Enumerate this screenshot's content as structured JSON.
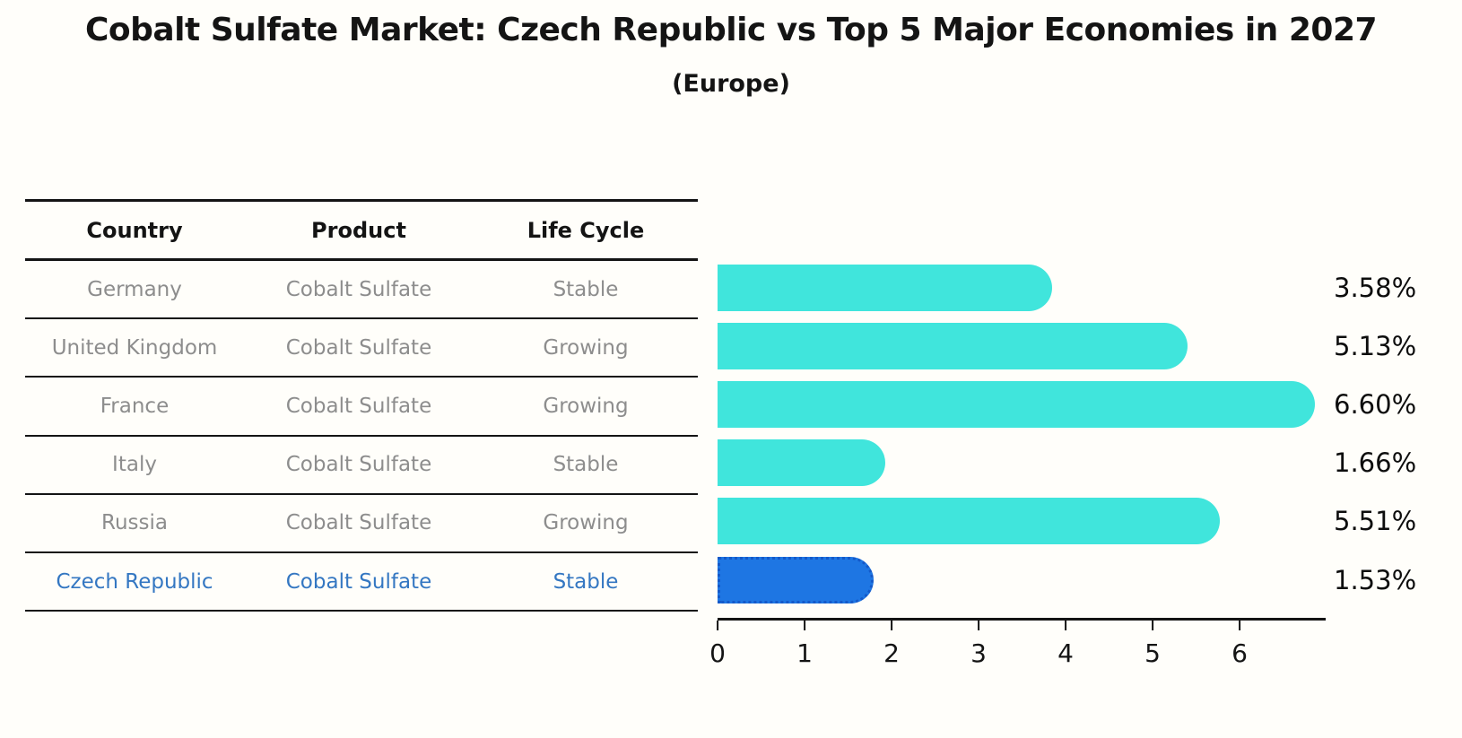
{
  "title": "Cobalt Sulfate Market: Czech Republic vs Top 5 Major Economies in 2027",
  "subtitle": "(Europe)",
  "table": {
    "headers": [
      "Country",
      "Product",
      "Life Cycle"
    ],
    "rows": [
      {
        "country": "Germany",
        "product": "Cobalt Sulfate",
        "life_cycle": "Stable"
      },
      {
        "country": "United Kingdom",
        "product": "Cobalt Sulfate",
        "life_cycle": "Growing"
      },
      {
        "country": "France",
        "product": "Cobalt Sulfate",
        "life_cycle": "Growing"
      },
      {
        "country": "Italy",
        "product": "Cobalt Sulfate",
        "life_cycle": "Stable"
      },
      {
        "country": "Russia",
        "product": "Cobalt Sulfate",
        "life_cycle": "Growing"
      },
      {
        "country": "Czech Republic",
        "product": "Cobalt Sulfate",
        "life_cycle": "Stable"
      }
    ],
    "highlighted_row": "Czech Republic"
  },
  "chart_data": {
    "type": "bar",
    "orientation": "horizontal",
    "title": "Cobalt Sulfate Market: Czech Republic vs Top 5 Major Economies in 2027",
    "subtitle": "(Europe)",
    "categories": [
      "Germany",
      "United Kingdom",
      "France",
      "Italy",
      "Russia",
      "Czech Republic"
    ],
    "values": [
      3.58,
      5.13,
      6.6,
      1.66,
      5.51,
      1.53
    ],
    "value_labels": [
      "3.58%",
      "5.13%",
      "6.60%",
      "1.66%",
      "5.51%",
      "1.53%"
    ],
    "x_ticks": [
      "0",
      "1",
      "2",
      "3",
      "4",
      "5",
      "6"
    ],
    "xlim": [
      0,
      7
    ],
    "grid": false,
    "legend": false,
    "highlight_index": 5
  },
  "colors": {
    "bar_color": "#40e5dc",
    "highlight_bar_color": "#1e76e3",
    "highlight_bar_border": "#1459c9",
    "highlight_text": "#3477c2",
    "muted_text": "#8d8d8d",
    "axis_text": "#141414",
    "background": "#fffefa"
  }
}
